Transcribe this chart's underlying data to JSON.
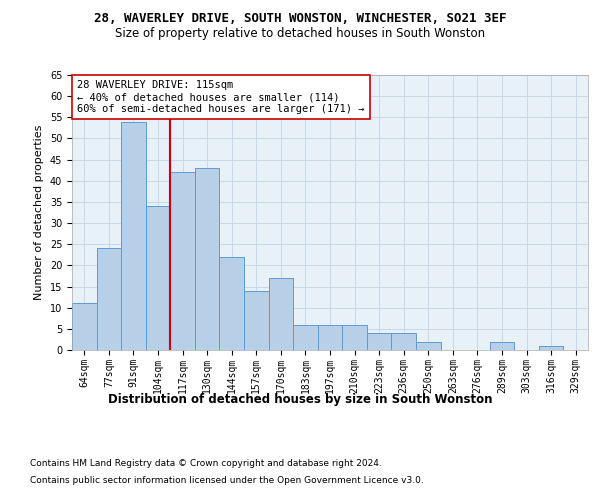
{
  "title": "28, WAVERLEY DRIVE, SOUTH WONSTON, WINCHESTER, SO21 3EF",
  "subtitle": "Size of property relative to detached houses in South Wonston",
  "xlabel": "Distribution of detached houses by size in South Wonston",
  "ylabel": "Number of detached properties",
  "categories": [
    "64sqm",
    "77sqm",
    "91sqm",
    "104sqm",
    "117sqm",
    "130sqm",
    "144sqm",
    "157sqm",
    "170sqm",
    "183sqm",
    "197sqm",
    "210sqm",
    "223sqm",
    "236sqm",
    "250sqm",
    "263sqm",
    "276sqm",
    "289sqm",
    "303sqm",
    "316sqm",
    "329sqm"
  ],
  "values": [
    11,
    24,
    54,
    34,
    42,
    43,
    22,
    14,
    17,
    6,
    6,
    6,
    4,
    4,
    2,
    0,
    0,
    2,
    0,
    1,
    0
  ],
  "bar_color": "#b8cfe8",
  "bar_edge_color": "#5b9bd5",
  "vline_x_index": 4,
  "vline_color": "#cc0000",
  "annotation_text": "28 WAVERLEY DRIVE: 115sqm\n← 40% of detached houses are smaller (114)\n60% of semi-detached houses are larger (171) →",
  "annotation_box_color": "#ffffff",
  "annotation_box_edge": "#cc0000",
  "ylim": [
    0,
    65
  ],
  "yticks": [
    0,
    5,
    10,
    15,
    20,
    25,
    30,
    35,
    40,
    45,
    50,
    55,
    60,
    65
  ],
  "footer1": "Contains HM Land Registry data © Crown copyright and database right 2024.",
  "footer2": "Contains public sector information licensed under the Open Government Licence v3.0.",
  "bg_color": "#ffffff",
  "plot_bg_color": "#e8f0f8",
  "grid_color": "#c8d8e8",
  "title_fontsize": 9,
  "subtitle_fontsize": 8.5,
  "xlabel_fontsize": 8.5,
  "ylabel_fontsize": 8,
  "tick_fontsize": 7,
  "annotation_fontsize": 7.5,
  "footer_fontsize": 6.5
}
